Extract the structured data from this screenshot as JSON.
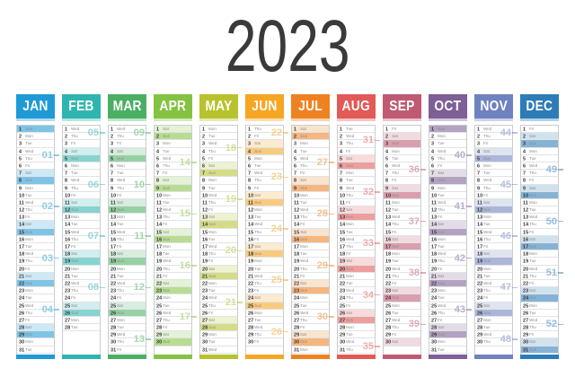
{
  "title": "2023",
  "weekday_names": [
    "Mon",
    "Tue",
    "Wed",
    "Thu",
    "Fri",
    "Sat",
    "Sun"
  ],
  "months": [
    {
      "label": "JAN",
      "color": "#1f9ad6",
      "days": 31,
      "first_weekday": "Sun",
      "weeks": [
        {
          "num": "01",
          "day": 4
        },
        {
          "num": "02",
          "day": 11
        },
        {
          "num": "03",
          "day": 18
        },
        {
          "num": "04",
          "day": 25
        }
      ]
    },
    {
      "label": "FEB",
      "color": "#2fb5b0",
      "days": 28,
      "first_weekday": "Wed",
      "weeks": [
        {
          "num": "05",
          "day": 1
        },
        {
          "num": "06",
          "day": 8
        },
        {
          "num": "07",
          "day": 15
        },
        {
          "num": "08",
          "day": 22
        }
      ]
    },
    {
      "label": "MAR",
      "color": "#4aaf63",
      "days": 31,
      "first_weekday": "Wed",
      "weeks": [
        {
          "num": "09",
          "day": 1
        },
        {
          "num": "10",
          "day": 8
        },
        {
          "num": "11",
          "day": 15
        },
        {
          "num": "12",
          "day": 22
        },
        {
          "num": "13",
          "day": 29
        }
      ]
    },
    {
      "label": "APR",
      "color": "#84c341",
      "days": 30,
      "first_weekday": "Sat",
      "weeks": [
        {
          "num": "14",
          "day": 5
        },
        {
          "num": "15",
          "day": 12
        },
        {
          "num": "16",
          "day": 19
        },
        {
          "num": "17",
          "day": 26
        }
      ]
    },
    {
      "label": "MAY",
      "color": "#b8c22d",
      "days": 31,
      "first_weekday": "Mon",
      "weeks": [
        {
          "num": "18",
          "day": 3
        },
        {
          "num": "19",
          "day": 10
        },
        {
          "num": "20",
          "day": 17
        },
        {
          "num": "21",
          "day": 24
        }
      ]
    },
    {
      "label": "JUN",
      "color": "#f6a623",
      "days": 30,
      "first_weekday": "Thu",
      "weeks": [
        {
          "num": "22",
          "day": 1
        },
        {
          "num": "23",
          "day": 7
        },
        {
          "num": "24",
          "day": 14
        },
        {
          "num": "25",
          "day": 21
        },
        {
          "num": "26",
          "day": 28
        }
      ]
    },
    {
      "label": "JUL",
      "color": "#ef8220",
      "days": 31,
      "first_weekday": "Sat",
      "weeks": [
        {
          "num": "27",
          "day": 5
        },
        {
          "num": "28",
          "day": 12
        },
        {
          "num": "29",
          "day": 19
        },
        {
          "num": "30",
          "day": 26
        }
      ]
    },
    {
      "label": "AUG",
      "color": "#e15a56",
      "days": 31,
      "first_weekday": "Tue",
      "weeks": [
        {
          "num": "31",
          "day": 2
        },
        {
          "num": "32",
          "day": 9
        },
        {
          "num": "33",
          "day": 16
        },
        {
          "num": "34",
          "day": 23
        },
        {
          "num": "35",
          "day": 30
        }
      ]
    },
    {
      "label": "SEP",
      "color": "#c05a72",
      "days": 30,
      "first_weekday": "Fri",
      "weeks": [
        {
          "num": "36",
          "day": 6
        },
        {
          "num": "37",
          "day": 13
        },
        {
          "num": "38",
          "day": 20
        },
        {
          "num": "39",
          "day": 27
        }
      ]
    },
    {
      "label": "OCT",
      "color": "#7e5f96",
      "days": 31,
      "first_weekday": "Sun",
      "weeks": [
        {
          "num": "40",
          "day": 4
        },
        {
          "num": "41",
          "day": 11
        },
        {
          "num": "42",
          "day": 18
        },
        {
          "num": "43",
          "day": 25
        }
      ]
    },
    {
      "label": "NOV",
      "color": "#6f82c0",
      "days": 30,
      "first_weekday": "Wed",
      "weeks": [
        {
          "num": "44",
          "day": 1
        },
        {
          "num": "45",
          "day": 8
        },
        {
          "num": "46",
          "day": 15
        },
        {
          "num": "47",
          "day": 22
        },
        {
          "num": "48",
          "day": 29
        }
      ]
    },
    {
      "label": "DEC",
      "color": "#2d7cb7",
      "days": 31,
      "first_weekday": "Fri",
      "weeks": [
        {
          "num": "49",
          "day": 6
        },
        {
          "num": "50",
          "day": 13
        },
        {
          "num": "51",
          "day": 20
        },
        {
          "num": "52",
          "day": 27
        }
      ]
    }
  ],
  "styles": {
    "title_color": "#3a3a3a",
    "saturday_tint_alpha": 0.22,
    "sunday_tint_alpha": 0.58,
    "header_underline_alpha": 0.35,
    "week_label_alpha": 0.5,
    "day_number_color": "#333333",
    "weekday_color": "#8a8a8a"
  }
}
